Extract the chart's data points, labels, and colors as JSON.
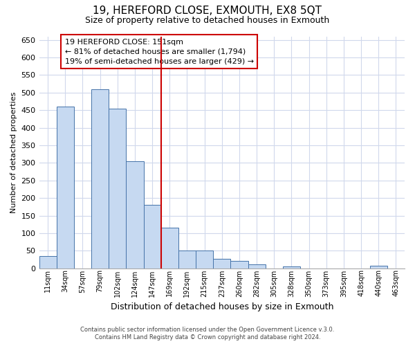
{
  "title": "19, HEREFORD CLOSE, EXMOUTH, EX8 5QT",
  "subtitle": "Size of property relative to detached houses in Exmouth",
  "xlabel": "Distribution of detached houses by size in Exmouth",
  "ylabel": "Number of detached properties",
  "bar_labels": [
    "11sqm",
    "34sqm",
    "57sqm",
    "79sqm",
    "102sqm",
    "124sqm",
    "147sqm",
    "169sqm",
    "192sqm",
    "215sqm",
    "237sqm",
    "260sqm",
    "282sqm",
    "305sqm",
    "328sqm",
    "350sqm",
    "373sqm",
    "395sqm",
    "418sqm",
    "440sqm",
    "463sqm"
  ],
  "bar_values": [
    35,
    460,
    0,
    510,
    455,
    305,
    180,
    115,
    50,
    50,
    28,
    22,
    12,
    0,
    5,
    0,
    0,
    0,
    0,
    7,
    0
  ],
  "bar_color": "#c6d9f1",
  "bar_edge_color": "#4472a8",
  "vline_index": 6,
  "vline_color": "#cc0000",
  "ylim": [
    0,
    660
  ],
  "yticks": [
    0,
    50,
    100,
    150,
    200,
    250,
    300,
    350,
    400,
    450,
    500,
    550,
    600,
    650
  ],
  "annotation_title": "19 HEREFORD CLOSE: 151sqm",
  "annotation_line1": "← 81% of detached houses are smaller (1,794)",
  "annotation_line2": "19% of semi-detached houses are larger (429) →",
  "footer1": "Contains HM Land Registry data © Crown copyright and database right 2024.",
  "footer2": "Contains public sector information licensed under the Open Government Licence v.3.0.",
  "background_color": "#ffffff",
  "grid_color": "#d0d8ec"
}
